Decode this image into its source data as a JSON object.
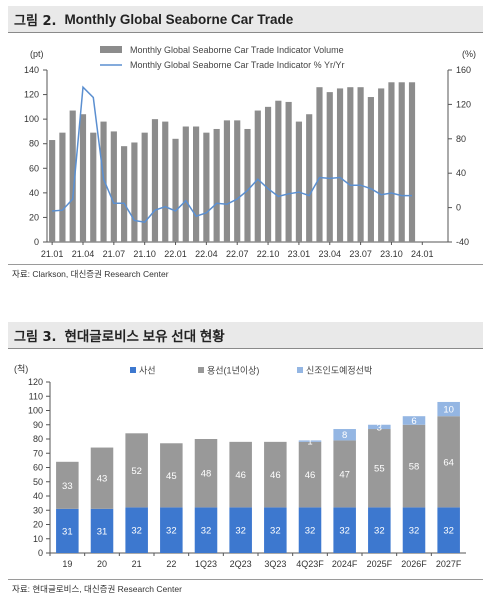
{
  "figures": [
    {
      "number": "그림 2.",
      "title": "Monthly Global Seaborne Car Trade",
      "source": "자료: Clarkson, 대신증권 Research Center"
    },
    {
      "number": "그림 3.",
      "title": "현대글로비스 보유 선대 현황",
      "source": "자료: 현대글로비스, 대신증권 Research Center"
    }
  ],
  "chart_data": [
    {
      "type": "bar",
      "title": "Monthly Global Seaborne Car Trade",
      "left_unit": "(pt)",
      "right_unit": "(%)",
      "ylim": [
        0,
        140
      ],
      "y2lim": [
        -40,
        160
      ],
      "yticks": [
        0,
        20,
        40,
        60,
        80,
        100,
        120,
        140
      ],
      "y2ticks": [
        -40,
        0,
        40,
        80,
        120,
        160
      ],
      "xtick_labels": [
        "21.01",
        "21.04",
        "21.07",
        "21.10",
        "22.01",
        "22.04",
        "22.07",
        "22.10",
        "23.01",
        "23.04",
        "23.07",
        "23.10",
        "24.01"
      ],
      "legend_position": "top",
      "grid": false,
      "colors": {
        "bar": "#8c8c8c",
        "line": "#5b8fd0"
      },
      "series": [
        {
          "name": "Monthly Global Seaborne Car Trade Indicator Volume",
          "kind": "bar",
          "axis": "left",
          "x": [
            "21.01",
            "21.02",
            "21.03",
            "21.04",
            "21.05",
            "21.06",
            "21.07",
            "21.08",
            "21.09",
            "21.10",
            "21.11",
            "21.12",
            "22.01",
            "22.02",
            "22.03",
            "22.04",
            "22.05",
            "22.06",
            "22.07",
            "22.08",
            "22.09",
            "22.10",
            "22.11",
            "22.12",
            "23.01",
            "23.02",
            "23.03",
            "23.04",
            "23.05",
            "23.06",
            "23.07",
            "23.08",
            "23.09",
            "23.10",
            "23.11",
            "23.12"
          ],
          "values": [
            83,
            89,
            107,
            104,
            89,
            98,
            90,
            78,
            81,
            89,
            100,
            98,
            84,
            94,
            94,
            89,
            92,
            99,
            99,
            92,
            107,
            110,
            115,
            114,
            98,
            104,
            126,
            122,
            125,
            126,
            126,
            118,
            125,
            130,
            130,
            130
          ]
        },
        {
          "name": "Monthly Global Seaborne Car Trade Indicator % Yr/Yr",
          "kind": "line",
          "axis": "right",
          "x": [
            "21.01",
            "21.02",
            "21.03",
            "21.04",
            "21.05",
            "21.06",
            "21.07",
            "21.08",
            "21.09",
            "21.10",
            "21.11",
            "21.12",
            "22.01",
            "22.02",
            "22.03",
            "22.04",
            "22.05",
            "22.06",
            "22.07",
            "22.08",
            "22.09",
            "22.10",
            "22.11",
            "22.12",
            "23.01",
            "23.02",
            "23.03",
            "23.04",
            "23.05",
            "23.06",
            "23.07",
            "23.08",
            "23.09",
            "23.10",
            "23.11",
            "23.12"
          ],
          "values": [
            -4,
            -3,
            10,
            140,
            128,
            33,
            5,
            5,
            -15,
            -17,
            -3,
            1,
            -4,
            8,
            -10,
            -6,
            5,
            4,
            10,
            20,
            33,
            22,
            13,
            16,
            18,
            14,
            35,
            34,
            35,
            26,
            26,
            22,
            15,
            17,
            14,
            14
          ]
        }
      ]
    },
    {
      "type": "bar",
      "stacked": true,
      "title": "현대글로비스 보유 선대 현황",
      "left_unit": "(척)",
      "ylim": [
        0,
        120
      ],
      "yticks": [
        0,
        10,
        20,
        30,
        40,
        50,
        60,
        70,
        80,
        90,
        100,
        110,
        120
      ],
      "categories": [
        "19",
        "20",
        "21",
        "22",
        "1Q23",
        "2Q23",
        "3Q23",
        "4Q23F",
        "2024F",
        "2025F",
        "2026F",
        "2027F"
      ],
      "legend_position": "top",
      "grid": false,
      "series": [
        {
          "name": "사선",
          "color": "#3d78cf",
          "label_color": "#ffffff",
          "values": [
            31,
            31,
            32,
            32,
            32,
            32,
            32,
            32,
            32,
            32,
            32,
            32
          ]
        },
        {
          "name": "용선(1년이상)",
          "color": "#999999",
          "label_color": "#ffffff",
          "values": [
            33,
            43,
            52,
            45,
            48,
            46,
            46,
            46,
            47,
            55,
            58,
            64
          ]
        },
        {
          "name": "신조인도예정선박",
          "color": "#94b6e3",
          "label_color": "#ffffff",
          "values": [
            0,
            0,
            0,
            0,
            0,
            0,
            0,
            1,
            8,
            3,
            6,
            10
          ]
        }
      ]
    }
  ]
}
